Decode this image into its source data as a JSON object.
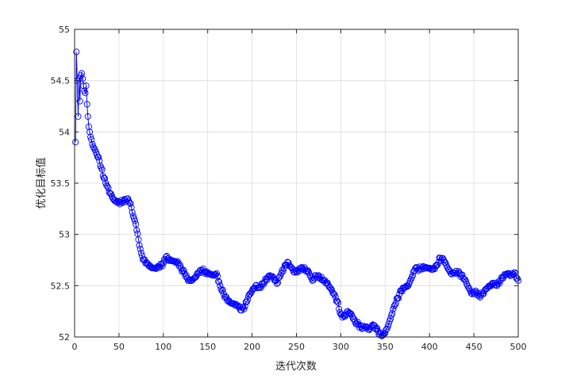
{
  "chart_data": {
    "type": "line",
    "title": "",
    "xlabel": "迭代次数",
    "ylabel": "优化目标值",
    "xlim": [
      0,
      500
    ],
    "ylim": [
      52,
      55
    ],
    "xticks": [
      0,
      50,
      100,
      150,
      200,
      250,
      300,
      350,
      400,
      450,
      500
    ],
    "yticks": [
      52,
      52.5,
      53,
      53.5,
      54,
      54.5,
      55
    ],
    "grid": true,
    "legend": "none",
    "marker": "circle-open",
    "color": "#0000ff",
    "keypoints": [
      [
        1,
        53.9
      ],
      [
        2,
        54.78
      ],
      [
        3,
        54.5
      ],
      [
        4,
        54.15
      ],
      [
        5,
        54.52
      ],
      [
        6,
        54.3
      ],
      [
        7,
        54.55
      ],
      [
        8,
        54.57
      ],
      [
        9,
        54.52
      ],
      [
        10,
        54.45
      ],
      [
        11,
        54.4
      ],
      [
        12,
        54.38
      ],
      [
        13,
        54.45
      ],
      [
        14,
        54.27
      ],
      [
        15,
        54.15
      ],
      [
        16,
        54.05
      ],
      [
        17,
        54.0
      ],
      [
        18,
        53.95
      ],
      [
        20,
        53.88
      ],
      [
        22,
        53.84
      ],
      [
        25,
        53.78
      ],
      [
        28,
        53.72
      ],
      [
        30,
        53.65
      ],
      [
        33,
        53.55
      ],
      [
        36,
        53.48
      ],
      [
        40,
        53.4
      ],
      [
        45,
        53.33
      ],
      [
        50,
        53.31
      ],
      [
        55,
        53.32
      ],
      [
        60,
        53.35
      ],
      [
        63,
        53.3
      ],
      [
        66,
        53.18
      ],
      [
        69,
        53.1
      ],
      [
        72,
        52.95
      ],
      [
        75,
        52.82
      ],
      [
        78,
        52.75
      ],
      [
        82,
        52.72
      ],
      [
        86,
        52.68
      ],
      [
        90,
        52.67
      ],
      [
        95,
        52.68
      ],
      [
        100,
        52.72
      ],
      [
        103,
        52.78
      ],
      [
        107,
        52.75
      ],
      [
        112,
        52.74
      ],
      [
        117,
        52.72
      ],
      [
        120,
        52.67
      ],
      [
        124,
        52.62
      ],
      [
        128,
        52.55
      ],
      [
        132,
        52.55
      ],
      [
        136,
        52.58
      ],
      [
        140,
        52.63
      ],
      [
        144,
        52.65
      ],
      [
        148,
        52.63
      ],
      [
        152,
        52.62
      ],
      [
        156,
        52.6
      ],
      [
        160,
        52.62
      ],
      [
        164,
        52.5
      ],
      [
        168,
        52.42
      ],
      [
        172,
        52.36
      ],
      [
        176,
        52.33
      ],
      [
        180,
        52.32
      ],
      [
        184,
        52.3
      ],
      [
        188,
        52.26
      ],
      [
        192,
        52.3
      ],
      [
        196,
        52.4
      ],
      [
        200,
        52.45
      ],
      [
        204,
        52.5
      ],
      [
        208,
        52.48
      ],
      [
        212,
        52.52
      ],
      [
        216,
        52.56
      ],
      [
        220,
        52.6
      ],
      [
        224,
        52.58
      ],
      [
        228,
        52.52
      ],
      [
        232,
        52.6
      ],
      [
        236,
        52.67
      ],
      [
        240,
        52.73
      ],
      [
        244,
        52.68
      ],
      [
        248,
        52.63
      ],
      [
        252,
        52.65
      ],
      [
        256,
        52.68
      ],
      [
        260,
        52.66
      ],
      [
        264,
        52.63
      ],
      [
        268,
        52.55
      ],
      [
        272,
        52.6
      ],
      [
        276,
        52.58
      ],
      [
        280,
        52.55
      ],
      [
        284,
        52.53
      ],
      [
        288,
        52.48
      ],
      [
        292,
        52.42
      ],
      [
        296,
        52.35
      ],
      [
        300,
        52.22
      ],
      [
        304,
        52.2
      ],
      [
        308,
        52.25
      ],
      [
        312,
        52.22
      ],
      [
        316,
        52.15
      ],
      [
        320,
        52.12
      ],
      [
        324,
        52.08
      ],
      [
        328,
        52.1
      ],
      [
        332,
        52.07
      ],
      [
        336,
        52.12
      ],
      [
        340,
        52.08
      ],
      [
        344,
        52.03
      ],
      [
        348,
        52.02
      ],
      [
        352,
        52.08
      ],
      [
        356,
        52.18
      ],
      [
        360,
        52.3
      ],
      [
        364,
        52.38
      ],
      [
        368,
        52.45
      ],
      [
        372,
        52.48
      ],
      [
        376,
        52.5
      ],
      [
        380,
        52.58
      ],
      [
        384,
        52.67
      ],
      [
        388,
        52.66
      ],
      [
        392,
        52.68
      ],
      [
        396,
        52.68
      ],
      [
        400,
        52.67
      ],
      [
        404,
        52.66
      ],
      [
        408,
        52.7
      ],
      [
        412,
        52.77
      ],
      [
        416,
        52.75
      ],
      [
        420,
        52.68
      ],
      [
        424,
        52.62
      ],
      [
        428,
        52.62
      ],
      [
        432,
        52.63
      ],
      [
        436,
        52.6
      ],
      [
        440,
        52.56
      ],
      [
        444,
        52.48
      ],
      [
        448,
        52.42
      ],
      [
        452,
        52.45
      ],
      [
        456,
        52.4
      ],
      [
        460,
        52.42
      ],
      [
        464,
        52.47
      ],
      [
        468,
        52.5
      ],
      [
        472,
        52.52
      ],
      [
        476,
        52.5
      ],
      [
        480,
        52.55
      ],
      [
        484,
        52.6
      ],
      [
        488,
        52.62
      ],
      [
        492,
        52.6
      ],
      [
        496,
        52.63
      ],
      [
        500,
        52.55
      ]
    ]
  }
}
